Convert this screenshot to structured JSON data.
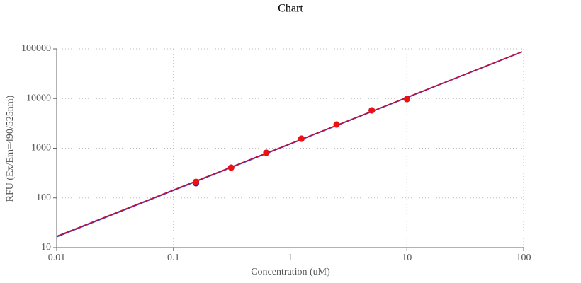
{
  "chart_data": {
    "type": "scatter",
    "title": "Chart",
    "x_label": "Concentration (uM)",
    "y_label": "RFU (Ex/Em=490/525nm)",
    "log_x": true,
    "log_y": true,
    "grid": true,
    "xlim": [
      0.01,
      100
    ],
    "xticks": [
      0.01,
      0.1,
      1,
      10,
      100
    ],
    "ylim": [
      10,
      100000
    ],
    "yticks": [
      10,
      100,
      1000,
      10000,
      100000
    ],
    "series": [
      {
        "type": "line",
        "color": "#3a3ad0",
        "x": [
          0.01,
          97
        ],
        "values": [
          16.4,
          86500
        ]
      },
      {
        "type": "line",
        "color": "#c0103a",
        "x": [
          0.01,
          97
        ],
        "values": [
          16.9,
          87700
        ]
      },
      {
        "type": "scatter",
        "color": "#2020d8",
        "x": [
          0.156,
          0.3125,
          0.625,
          1.25,
          2.5,
          5,
          10
        ],
        "values": [
          197,
          406,
          809,
          1556,
          3000,
          5780,
          9750
        ]
      },
      {
        "type": "scatter",
        "color": "#ee1111",
        "x": [
          0.156,
          0.3125,
          0.625,
          1.25,
          2.5,
          5,
          10
        ],
        "values": [
          211,
          406,
          809,
          1556,
          3000,
          5780,
          9750
        ]
      }
    ]
  }
}
